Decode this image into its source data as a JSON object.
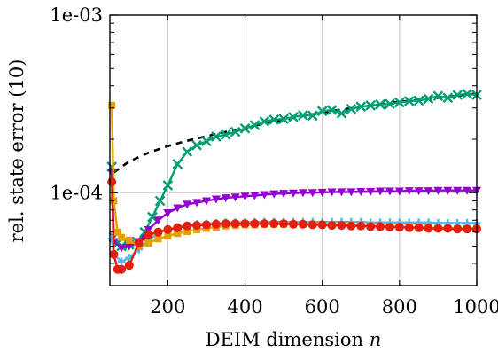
{
  "chart_data": {
    "type": "line",
    "title": "",
    "xlabel": "DEIM dimension",
    "xlabel_var": "n",
    "ylabel": "rel. state error (10)",
    "xlim": [
      50,
      1000
    ],
    "ylim": [
      3e-05,
      0.001
    ],
    "yscale": "log",
    "grid": "x-major",
    "xticks": [
      200,
      400,
      600,
      800,
      1000
    ],
    "xtick_labels": [
      "200",
      "400",
      "600",
      "800",
      "1000"
    ],
    "yticks": [
      0.0001,
      0.001
    ],
    "ytick_labels": [
      "1e-04",
      "1e-03"
    ],
    "series": [
      {
        "color": "#000000",
        "dash": true,
        "marker": "none",
        "x": [
          60,
          100,
          150,
          200,
          250,
          300,
          350,
          400,
          450,
          500,
          550,
          600,
          650,
          700,
          750,
          800,
          850,
          900,
          950,
          1000
        ],
        "y": [
          0.00013,
          0.00015,
          0.000168,
          0.000183,
          0.000196,
          0.000208,
          0.00022,
          0.000232,
          0.000245,
          0.000257,
          0.00027,
          0.000282,
          0.000294,
          0.000305,
          0.000315,
          0.000325,
          0.000333,
          0.000342,
          0.000352,
          0.000362
        ]
      },
      {
        "color": "#009e73",
        "marker": "cross",
        "x": [
          55,
          60,
          70,
          80,
          100,
          120,
          140,
          160,
          180,
          200,
          225,
          250,
          275,
          300,
          325,
          350,
          375,
          400,
          425,
          450,
          475,
          500,
          525,
          550,
          575,
          600,
          625,
          650,
          675,
          700,
          725,
          750,
          775,
          800,
          825,
          850,
          875,
          900,
          925,
          950,
          975,
          1000
        ],
        "y": [
          0.00014,
          5.6e-05,
          5.2e-05,
          5e-05,
          5.1e-05,
          5.3e-05,
          6e-05,
          7.3e-05,
          9e-05,
          0.00011,
          0.000145,
          0.00017,
          0.000185,
          0.000195,
          0.000207,
          0.000212,
          0.00022,
          0.00023,
          0.00024,
          0.000252,
          0.000258,
          0.00026,
          0.000267,
          0.000273,
          0.000272,
          0.000288,
          0.000292,
          0.00028,
          0.000296,
          0.000305,
          0.00031,
          0.000314,
          0.000316,
          0.000322,
          0.000328,
          0.00033,
          0.000338,
          0.00035,
          0.000342,
          0.000355,
          0.00036,
          0.000355
        ]
      },
      {
        "color": "#9400d3",
        "marker": "triangle-down",
        "x": [
          55,
          60,
          80,
          100,
          125,
          150,
          175,
          200,
          225,
          250,
          275,
          300,
          325,
          350,
          375,
          400,
          425,
          450,
          475,
          500,
          525,
          550,
          575,
          600,
          625,
          650,
          675,
          700,
          725,
          750,
          775,
          800,
          825,
          850,
          875,
          900,
          925,
          950,
          975,
          1000
        ],
        "y": [
          0.00013,
          5.3e-05,
          4.9e-05,
          5e-05,
          5.3e-05,
          6.2e-05,
          7e-05,
          7.7e-05,
          8.2e-05,
          8.6e-05,
          8.8e-05,
          9e-05,
          9.2e-05,
          9.35e-05,
          9.45e-05,
          9.55e-05,
          9.65e-05,
          9.75e-05,
          9.85e-05,
          9.9e-05,
          9.95e-05,
          0.0001,
          0.0001,
          0.0001005,
          0.000101,
          0.000101,
          0.000101,
          0.0001015,
          0.0001015,
          0.000102,
          0.000102,
          0.000102,
          0.0001025,
          0.0001025,
          0.0001025,
          0.000103,
          0.000103,
          0.000103,
          0.000103,
          0.000103
        ]
      },
      {
        "color": "#56b4e9",
        "marker": "plus",
        "x": [
          55,
          60,
          80,
          100,
          125,
          150,
          175,
          200,
          225,
          250,
          275,
          300,
          325,
          350,
          375,
          400,
          425,
          450,
          475,
          500,
          525,
          550,
          575,
          600,
          625,
          650,
          675,
          700,
          725,
          750,
          775,
          800,
          825,
          850,
          875,
          900,
          925,
          950,
          975,
          1000
        ],
        "y": [
          5.5e-05,
          4.5e-05,
          4.1e-05,
          4.3e-05,
          4.8e-05,
          5.4e-05,
          5.9e-05,
          6.2e-05,
          6.4e-05,
          6.55e-05,
          6.65e-05,
          6.7e-05,
          6.75e-05,
          6.8e-05,
          6.8e-05,
          6.82e-05,
          6.85e-05,
          6.85e-05,
          6.85e-05,
          6.85e-05,
          6.85e-05,
          6.85e-05,
          6.85e-05,
          6.85e-05,
          6.85e-05,
          6.85e-05,
          6.85e-05,
          6.85e-05,
          6.8e-05,
          6.8e-05,
          6.8e-05,
          6.8e-05,
          6.8e-05,
          6.8e-05,
          6.8e-05,
          6.75e-05,
          6.75e-05,
          6.75e-05,
          6.75e-05,
          6.75e-05
        ]
      },
      {
        "color": "#e69f00",
        "marker": "square",
        "x": [
          55,
          60,
          70,
          80,
          100,
          125,
          150,
          175,
          200,
          225,
          250,
          275,
          300,
          325,
          350,
          375,
          400,
          425,
          450,
          475,
          500,
          525,
          550,
          575,
          600,
          625,
          650,
          675,
          700,
          725,
          750,
          775,
          800,
          825,
          850,
          875,
          900,
          925,
          950,
          975,
          1000
        ],
        "y": [
          0.00031,
          9e-05,
          6e-05,
          5.6e-05,
          5.4e-05,
          5e-05,
          5.2e-05,
          5.5e-05,
          5.7e-05,
          5.9e-05,
          6.05e-05,
          6.2e-05,
          6.3e-05,
          6.4e-05,
          6.5e-05,
          6.55e-05,
          6.6e-05,
          6.6e-05,
          6.65e-05,
          6.65e-05,
          6.65e-05,
          6.65e-05,
          6.65e-05,
          6.65e-05,
          6.65e-05,
          6.6e-05,
          6.6e-05,
          6.55e-05,
          6.5e-05,
          6.5e-05,
          6.45e-05,
          6.45e-05,
          6.4e-05,
          6.4e-05,
          6.35e-05,
          6.35e-05,
          6.3e-05,
          6.3e-05,
          6.3e-05,
          6.3e-05,
          6.3e-05
        ]
      },
      {
        "color": "#e51e10",
        "marker": "circle",
        "x": [
          55,
          60,
          70,
          80,
          100,
          125,
          150,
          175,
          200,
          225,
          250,
          275,
          300,
          325,
          350,
          375,
          400,
          425,
          450,
          475,
          500,
          525,
          550,
          575,
          600,
          625,
          650,
          675,
          700,
          725,
          750,
          775,
          800,
          825,
          850,
          875,
          900,
          925,
          950,
          975,
          1000
        ],
        "y": [
          0.000115,
          4.5e-05,
          3.7e-05,
          3.7e-05,
          3.9e-05,
          5.2e-05,
          5.8e-05,
          6e-05,
          6.2e-05,
          6.35e-05,
          6.5e-05,
          6.55e-05,
          6.6e-05,
          6.65e-05,
          6.7e-05,
          6.7e-05,
          6.7e-05,
          6.7e-05,
          6.7e-05,
          6.7e-05,
          6.7e-05,
          6.65e-05,
          6.65e-05,
          6.6e-05,
          6.6e-05,
          6.55e-05,
          6.55e-05,
          6.5e-05,
          6.5e-05,
          6.45e-05,
          6.45e-05,
          6.4e-05,
          6.4e-05,
          6.35e-05,
          6.35e-05,
          6.3e-05,
          6.3e-05,
          6.3e-05,
          6.25e-05,
          6.25e-05,
          6.25e-05
        ]
      }
    ]
  }
}
